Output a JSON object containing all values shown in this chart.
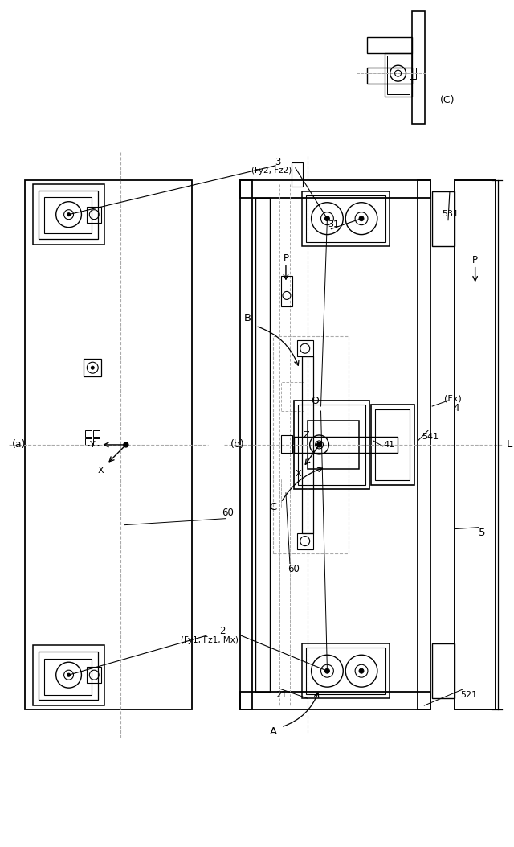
{
  "bg_color": "#ffffff",
  "line_color": "#000000",
  "dashed_color": "#aaaaaa",
  "fig_width": 6.4,
  "fig_height": 10.53,
  "labels": {
    "a_label": "(a)",
    "b_label": "(b)",
    "c_label": "(C)",
    "label_2": "2",
    "label_3": "3",
    "label_4": "4",
    "label_5": "5",
    "label_21": "21",
    "label_31": "31",
    "label_41": "41",
    "label_60a": "60",
    "label_60b": "60",
    "label_521": "521",
    "label_531": "531",
    "label_541": "541",
    "label_Fy1": "(Fy1, Fz1, Mx)",
    "label_Fy2": "(Fy2, Fz2)",
    "label_Fx": "(Fx)",
    "label_P1": "P",
    "label_P2": "P",
    "label_A": "A",
    "label_B": "B",
    "label_C": "C",
    "label_O": "O",
    "label_L": "L",
    "label_X1": "X",
    "label_Y1": "Y",
    "label_Z": "Z",
    "label_X2": "X"
  }
}
